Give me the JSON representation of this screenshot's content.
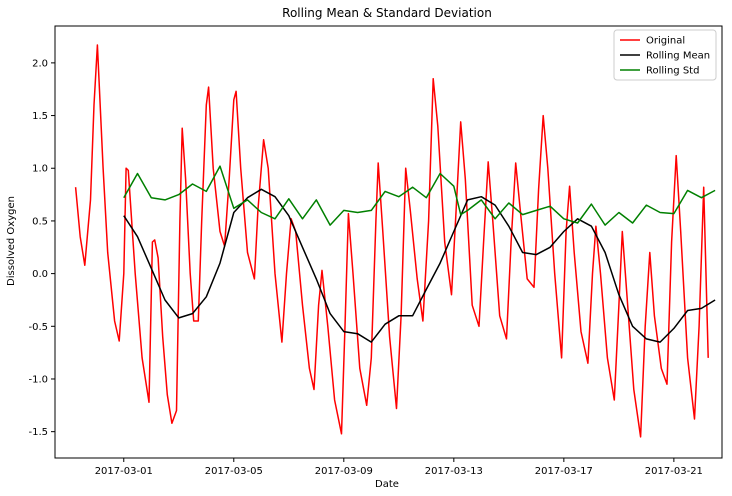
{
  "chart_data": {
    "type": "line",
    "title": "Rolling Mean & Standard Deviation",
    "xlabel": "Date",
    "ylabel": "Dissolved Oxygen",
    "xlim": [
      "2017-02-26T12:00",
      "2017-03-22T18:00"
    ],
    "ylim": [
      -1.75,
      2.35
    ],
    "x_ticks": [
      "2017-03-01",
      "2017-03-05",
      "2017-03-09",
      "2017-03-13",
      "2017-03-17",
      "2017-03-21"
    ],
    "y_ticks": [
      -1.5,
      -1.0,
      -0.5,
      0.0,
      0.5,
      1.0,
      1.5,
      2.0
    ],
    "y_tick_labels": [
      "-1.5",
      "-1.0",
      "-0.5",
      "0.0",
      "0.5",
      "1.0",
      "1.5",
      "2.0"
    ],
    "grid": false,
    "legend_position": "top-right",
    "series": [
      {
        "name": "Original",
        "color": "#ff0000",
        "points": [
          [
            "2017-02-27T06:00",
            0.82
          ],
          [
            "2017-02-27T10:00",
            0.35
          ],
          [
            "2017-02-27T14:00",
            0.08
          ],
          [
            "2017-02-27T19:00",
            0.7
          ],
          [
            "2017-02-27T22:00",
            1.6
          ],
          [
            "2017-02-28T01:00",
            2.17
          ],
          [
            "2017-02-28T06:00",
            1.0
          ],
          [
            "2017-02-28T10:00",
            0.2
          ],
          [
            "2017-02-28T16:00",
            -0.45
          ],
          [
            "2017-02-28T20:00",
            -0.64
          ],
          [
            "2017-03-01T00:00",
            0.0
          ],
          [
            "2017-03-01T02:00",
            1.0
          ],
          [
            "2017-03-01T04:00",
            0.98
          ],
          [
            "2017-03-01T10:00",
            0.0
          ],
          [
            "2017-03-01T16:00",
            -0.8
          ],
          [
            "2017-03-01T22:00",
            -1.22
          ],
          [
            "2017-03-02T01:00",
            0.3
          ],
          [
            "2017-03-02T03:00",
            0.32
          ],
          [
            "2017-03-02T06:00",
            0.15
          ],
          [
            "2017-03-02T10:00",
            -0.6
          ],
          [
            "2017-03-02T14:00",
            -1.15
          ],
          [
            "2017-03-02T18:00",
            -1.42
          ],
          [
            "2017-03-02T22:00",
            -1.3
          ],
          [
            "2017-03-03T01:00",
            0.5
          ],
          [
            "2017-03-03T03:00",
            1.38
          ],
          [
            "2017-03-03T06:00",
            0.9
          ],
          [
            "2017-03-03T10:00",
            0.0
          ],
          [
            "2017-03-03T13:00",
            -0.45
          ],
          [
            "2017-03-03T17:00",
            -0.45
          ],
          [
            "2017-03-03T20:00",
            0.5
          ],
          [
            "2017-03-04T00:00",
            1.6
          ],
          [
            "2017-03-04T02:00",
            1.77
          ],
          [
            "2017-03-04T06:00",
            1.0
          ],
          [
            "2017-03-04T12:00",
            0.4
          ],
          [
            "2017-03-04T16:00",
            0.26
          ],
          [
            "2017-03-04T20:00",
            0.9
          ],
          [
            "2017-03-05T00:00",
            1.65
          ],
          [
            "2017-03-05T02:00",
            1.73
          ],
          [
            "2017-03-05T06:00",
            1.0
          ],
          [
            "2017-03-05T12:00",
            0.2
          ],
          [
            "2017-03-05T18:00",
            -0.05
          ],
          [
            "2017-03-05T21:00",
            0.6
          ],
          [
            "2017-03-06T02:00",
            1.27
          ],
          [
            "2017-03-06T06:00",
            1.0
          ],
          [
            "2017-03-06T12:00",
            0.0
          ],
          [
            "2017-03-06T18:00",
            -0.65
          ],
          [
            "2017-03-06T22:00",
            0.0
          ],
          [
            "2017-03-07T02:00",
            0.52
          ],
          [
            "2017-03-07T06:00",
            0.4
          ],
          [
            "2017-03-07T12:00",
            -0.3
          ],
          [
            "2017-03-07T18:00",
            -0.9
          ],
          [
            "2017-03-07T22:00",
            -1.1
          ],
          [
            "2017-03-08T02:00",
            -0.3
          ],
          [
            "2017-03-08T05:00",
            0.03
          ],
          [
            "2017-03-08T10:00",
            -0.5
          ],
          [
            "2017-03-08T16:00",
            -1.2
          ],
          [
            "2017-03-08T22:00",
            -1.52
          ],
          [
            "2017-03-09T01:00",
            -0.5
          ],
          [
            "2017-03-09T04:00",
            0.57
          ],
          [
            "2017-03-09T08:00",
            0.0
          ],
          [
            "2017-03-09T14:00",
            -0.9
          ],
          [
            "2017-03-09T20:00",
            -1.25
          ],
          [
            "2017-03-10T00:00",
            -0.8
          ],
          [
            "2017-03-10T04:00",
            0.5
          ],
          [
            "2017-03-10T06:00",
            1.05
          ],
          [
            "2017-03-10T10:00",
            0.4
          ],
          [
            "2017-03-10T16:00",
            -0.6
          ],
          [
            "2017-03-10T22:00",
            -1.28
          ],
          [
            "2017-03-11T02:00",
            -0.4
          ],
          [
            "2017-03-11T06:00",
            1.0
          ],
          [
            "2017-03-11T10:00",
            0.6
          ],
          [
            "2017-03-11T16:00",
            -0.05
          ],
          [
            "2017-03-11T21:00",
            -0.45
          ],
          [
            "2017-03-12T02:00",
            0.5
          ],
          [
            "2017-03-12T06:00",
            1.85
          ],
          [
            "2017-03-12T10:00",
            1.4
          ],
          [
            "2017-03-12T16:00",
            0.3
          ],
          [
            "2017-03-12T22:00",
            -0.2
          ],
          [
            "2017-03-13T02:00",
            0.6
          ],
          [
            "2017-03-13T06:00",
            1.44
          ],
          [
            "2017-03-13T10:00",
            0.9
          ],
          [
            "2017-03-13T16:00",
            -0.3
          ],
          [
            "2017-03-13T22:00",
            -0.5
          ],
          [
            "2017-03-14T02:00",
            0.3
          ],
          [
            "2017-03-14T06:00",
            1.06
          ],
          [
            "2017-03-14T10:00",
            0.5
          ],
          [
            "2017-03-14T16:00",
            -0.4
          ],
          [
            "2017-03-14T22:00",
            -0.62
          ],
          [
            "2017-03-15T02:00",
            0.3
          ],
          [
            "2017-03-15T06:00",
            1.05
          ],
          [
            "2017-03-15T10:00",
            0.6
          ],
          [
            "2017-03-15T16:00",
            -0.05
          ],
          [
            "2017-03-15T22:00",
            -0.13
          ],
          [
            "2017-03-16T02:00",
            0.8
          ],
          [
            "2017-03-16T06:00",
            1.5
          ],
          [
            "2017-03-16T10:00",
            1.0
          ],
          [
            "2017-03-16T16:00",
            0.0
          ],
          [
            "2017-03-16T22:00",
            -0.8
          ],
          [
            "2017-03-17T02:00",
            0.4
          ],
          [
            "2017-03-17T05:00",
            0.83
          ],
          [
            "2017-03-17T09:00",
            0.2
          ],
          [
            "2017-03-17T15:00",
            -0.55
          ],
          [
            "2017-03-17T21:00",
            -0.85
          ],
          [
            "2017-03-18T01:00",
            0.0
          ],
          [
            "2017-03-18T04:00",
            0.45
          ],
          [
            "2017-03-18T08:00",
            0.0
          ],
          [
            "2017-03-18T14:00",
            -0.8
          ],
          [
            "2017-03-18T20:00",
            -1.2
          ],
          [
            "2017-03-19T00:00",
            -0.3
          ],
          [
            "2017-03-19T03:00",
            0.4
          ],
          [
            "2017-03-19T07:00",
            -0.2
          ],
          [
            "2017-03-19T13:00",
            -1.1
          ],
          [
            "2017-03-19T19:00",
            -1.55
          ],
          [
            "2017-03-19T23:00",
            -0.5
          ],
          [
            "2017-03-20T03:00",
            0.2
          ],
          [
            "2017-03-20T07:00",
            -0.4
          ],
          [
            "2017-03-20T13:00",
            -0.9
          ],
          [
            "2017-03-20T18:00",
            -1.05
          ],
          [
            "2017-03-20T22:00",
            0.3
          ],
          [
            "2017-03-21T02:00",
            1.12
          ],
          [
            "2017-03-21T06:00",
            0.4
          ],
          [
            "2017-03-21T12:00",
            -0.8
          ],
          [
            "2017-03-21T18:00",
            -1.38
          ],
          [
            "2017-03-21T22:00",
            -0.5
          ],
          [
            "2017-03-22T02:00",
            0.82
          ],
          [
            "2017-03-22T06:00",
            -0.8
          ]
        ]
      },
      {
        "name": "Rolling Mean",
        "color": "#000000",
        "points": [
          [
            "2017-03-01T00:00",
            0.55
          ],
          [
            "2017-03-01T12:00",
            0.35
          ],
          [
            "2017-03-02T00:00",
            0.05
          ],
          [
            "2017-03-02T12:00",
            -0.25
          ],
          [
            "2017-03-03T00:00",
            -0.42
          ],
          [
            "2017-03-03T12:00",
            -0.38
          ],
          [
            "2017-03-04T00:00",
            -0.22
          ],
          [
            "2017-03-04T12:00",
            0.1
          ],
          [
            "2017-03-05T00:00",
            0.58
          ],
          [
            "2017-03-05T12:00",
            0.72
          ],
          [
            "2017-03-06T00:00",
            0.8
          ],
          [
            "2017-03-06T12:00",
            0.73
          ],
          [
            "2017-03-07T00:00",
            0.55
          ],
          [
            "2017-03-07T12:00",
            0.25
          ],
          [
            "2017-03-08T00:00",
            -0.05
          ],
          [
            "2017-03-08T12:00",
            -0.38
          ],
          [
            "2017-03-09T00:00",
            -0.55
          ],
          [
            "2017-03-09T12:00",
            -0.57
          ],
          [
            "2017-03-10T00:00",
            -0.65
          ],
          [
            "2017-03-10T12:00",
            -0.48
          ],
          [
            "2017-03-11T00:00",
            -0.4
          ],
          [
            "2017-03-11T12:00",
            -0.4
          ],
          [
            "2017-03-12T00:00",
            -0.15
          ],
          [
            "2017-03-12T12:00",
            0.1
          ],
          [
            "2017-03-13T00:00",
            0.4
          ],
          [
            "2017-03-13T12:00",
            0.7
          ],
          [
            "2017-03-14T00:00",
            0.73
          ],
          [
            "2017-03-14T12:00",
            0.65
          ],
          [
            "2017-03-15T00:00",
            0.45
          ],
          [
            "2017-03-15T12:00",
            0.2
          ],
          [
            "2017-03-16T00:00",
            0.18
          ],
          [
            "2017-03-16T12:00",
            0.25
          ],
          [
            "2017-03-17T00:00",
            0.4
          ],
          [
            "2017-03-17T12:00",
            0.52
          ],
          [
            "2017-03-18T00:00",
            0.45
          ],
          [
            "2017-03-18T12:00",
            0.2
          ],
          [
            "2017-03-19T00:00",
            -0.2
          ],
          [
            "2017-03-19T12:00",
            -0.5
          ],
          [
            "2017-03-20T00:00",
            -0.62
          ],
          [
            "2017-03-20T12:00",
            -0.65
          ],
          [
            "2017-03-21T00:00",
            -0.52
          ],
          [
            "2017-03-21T12:00",
            -0.35
          ],
          [
            "2017-03-22T00:00",
            -0.33
          ],
          [
            "2017-03-22T12:00",
            -0.25
          ]
        ]
      },
      {
        "name": "Rolling Std",
        "color": "#008000",
        "points": [
          [
            "2017-03-01T00:00",
            0.72
          ],
          [
            "2017-03-01T12:00",
            0.95
          ],
          [
            "2017-03-02T00:00",
            0.72
          ],
          [
            "2017-03-02T12:00",
            0.7
          ],
          [
            "2017-03-03T00:00",
            0.75
          ],
          [
            "2017-03-03T12:00",
            0.85
          ],
          [
            "2017-03-04T00:00",
            0.78
          ],
          [
            "2017-03-04T12:00",
            1.02
          ],
          [
            "2017-03-05T00:00",
            0.62
          ],
          [
            "2017-03-05T12:00",
            0.7
          ],
          [
            "2017-03-06T00:00",
            0.58
          ],
          [
            "2017-03-06T12:00",
            0.52
          ],
          [
            "2017-03-07T00:00",
            0.71
          ],
          [
            "2017-03-07T12:00",
            0.52
          ],
          [
            "2017-03-08T00:00",
            0.7
          ],
          [
            "2017-03-08T12:00",
            0.46
          ],
          [
            "2017-03-09T00:00",
            0.6
          ],
          [
            "2017-03-09T12:00",
            0.58
          ],
          [
            "2017-03-10T00:00",
            0.6
          ],
          [
            "2017-03-10T12:00",
            0.78
          ],
          [
            "2017-03-11T00:00",
            0.73
          ],
          [
            "2017-03-11T12:00",
            0.82
          ],
          [
            "2017-03-12T00:00",
            0.72
          ],
          [
            "2017-03-12T12:00",
            0.95
          ],
          [
            "2017-03-13T00:00",
            0.83
          ],
          [
            "2017-03-13T06:00",
            0.56
          ],
          [
            "2017-03-13T12:00",
            0.6
          ],
          [
            "2017-03-14T00:00",
            0.7
          ],
          [
            "2017-03-14T12:00",
            0.52
          ],
          [
            "2017-03-15T00:00",
            0.67
          ],
          [
            "2017-03-15T12:00",
            0.56
          ],
          [
            "2017-03-16T00:00",
            0.6
          ],
          [
            "2017-03-16T12:00",
            0.64
          ],
          [
            "2017-03-17T00:00",
            0.52
          ],
          [
            "2017-03-17T12:00",
            0.48
          ],
          [
            "2017-03-18T00:00",
            0.66
          ],
          [
            "2017-03-18T12:00",
            0.46
          ],
          [
            "2017-03-19T00:00",
            0.58
          ],
          [
            "2017-03-19T12:00",
            0.48
          ],
          [
            "2017-03-20T00:00",
            0.65
          ],
          [
            "2017-03-20T12:00",
            0.58
          ],
          [
            "2017-03-21T00:00",
            0.57
          ],
          [
            "2017-03-21T12:00",
            0.79
          ],
          [
            "2017-03-22T00:00",
            0.72
          ],
          [
            "2017-03-22T12:00",
            0.79
          ]
        ]
      }
    ]
  }
}
